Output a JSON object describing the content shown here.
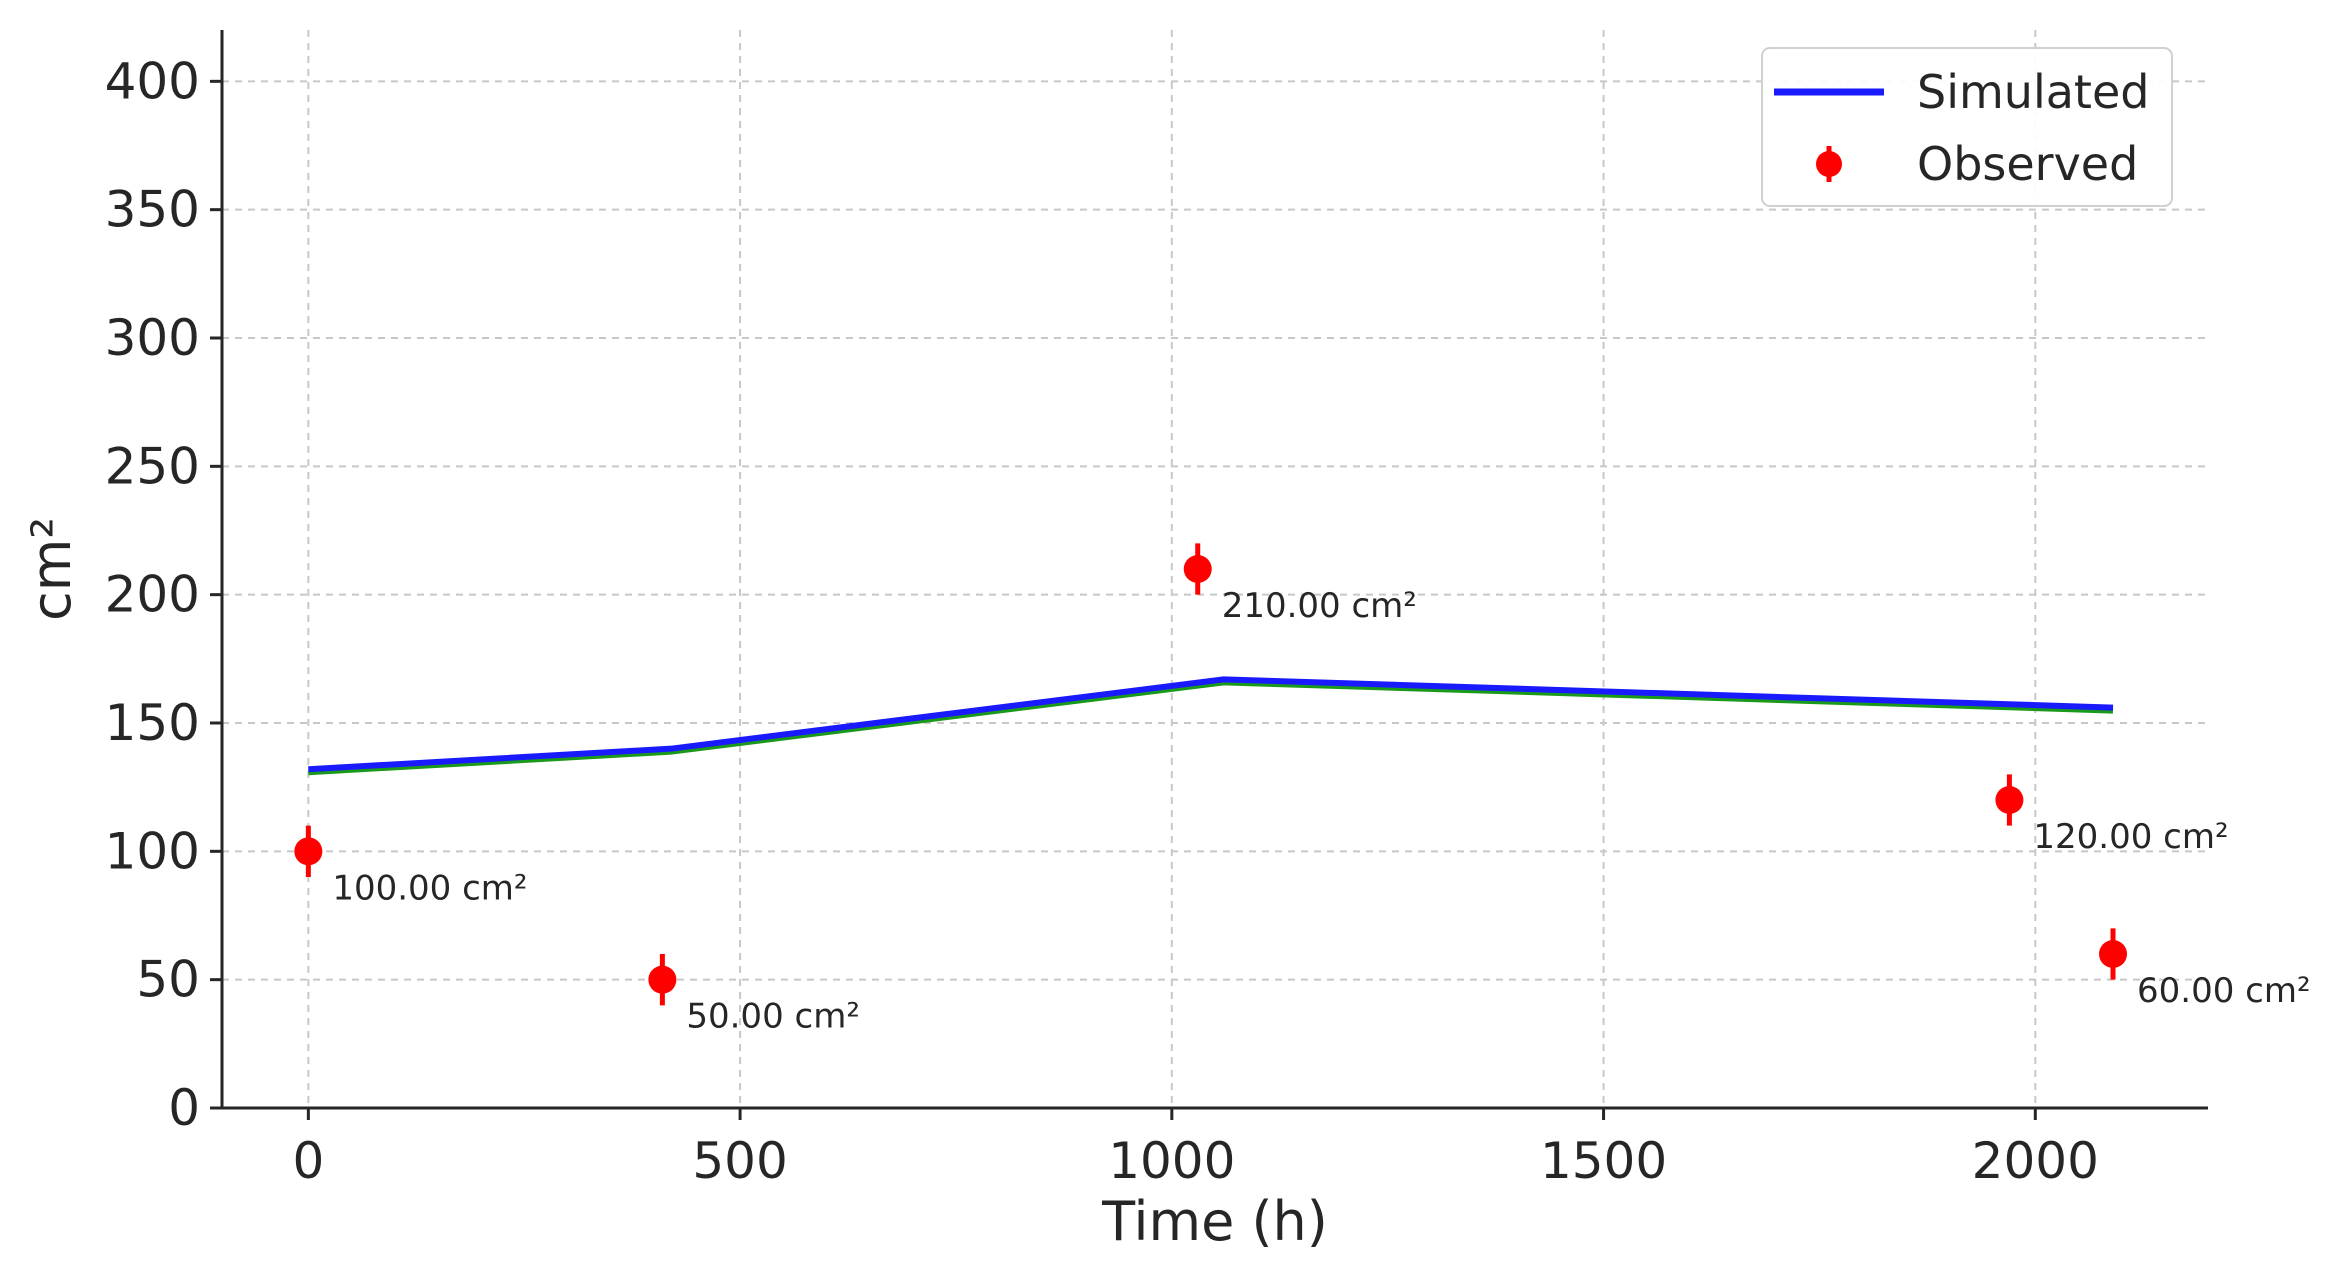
{
  "chart_data": {
    "type": "line",
    "xlabel": "Time (h)",
    "ylabel": "cm²",
    "xlim": [
      -100,
      2200
    ],
    "ylim": [
      0,
      420
    ],
    "xticks": [
      0,
      500,
      1000,
      1500,
      2000
    ],
    "yticks": [
      0,
      50,
      100,
      150,
      200,
      250,
      300,
      350,
      400
    ],
    "grid": true,
    "legend_position": "top-right",
    "series": [
      {
        "name": "Simulated",
        "kind": "line",
        "color": "#1a1aff",
        "x": [
          0,
          420,
          1060,
          2090
        ],
        "y": [
          132,
          140,
          167,
          156
        ]
      },
      {
        "name": "Observed",
        "kind": "errorbar",
        "color": "#ff0000",
        "x": [
          0,
          410,
          1030,
          1970,
          2090
        ],
        "y": [
          100,
          50,
          210,
          120,
          60
        ],
        "yerr": [
          10,
          10,
          10,
          10,
          10
        ],
        "labels": [
          "100.00 cm²",
          "50.00 cm²",
          "210.00 cm²",
          "120.00 cm²",
          "60.00 cm²"
        ]
      }
    ]
  }
}
